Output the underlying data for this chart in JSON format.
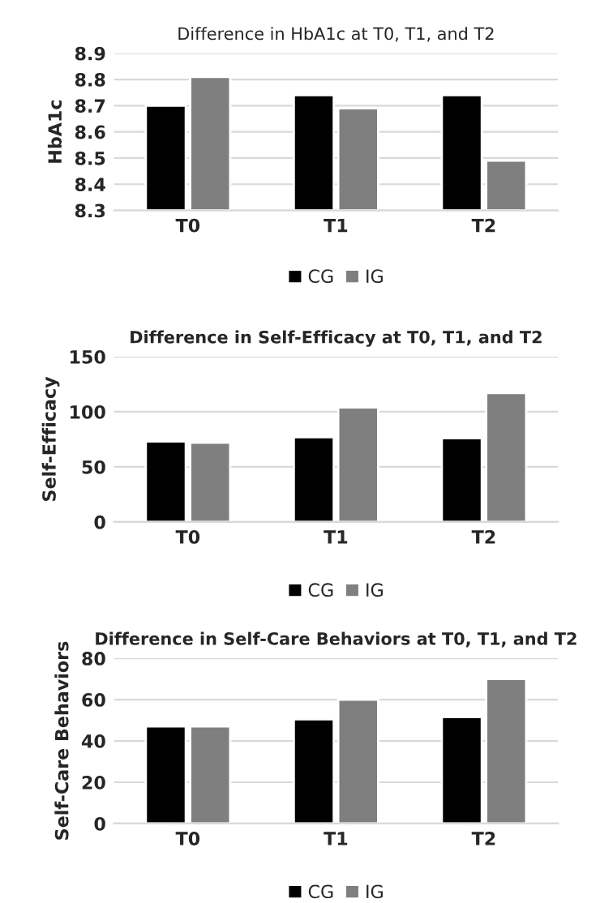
{
  "chart_data": [
    {
      "type": "bar",
      "title": "Difference in HbA1c at T0, T1, and T2",
      "ylabel": "HbA1c",
      "categories": [
        "T0",
        "T1",
        "T2"
      ],
      "series": [
        {
          "name": "CG",
          "color": "#000000",
          "values": [
            8.7,
            8.74,
            8.74
          ]
        },
        {
          "name": "IG",
          "color": "#7f7f7f",
          "values": [
            8.81,
            8.69,
            8.49
          ]
        }
      ],
      "ylim": [
        8.3,
        8.9
      ],
      "yticks": [
        {
          "value": 8.3,
          "label": "8.3"
        },
        {
          "value": 8.4,
          "label": "8.4"
        },
        {
          "value": 8.5,
          "label": "8.5"
        },
        {
          "value": 8.6,
          "label": "8.6"
        },
        {
          "value": 8.7,
          "label": "8.7"
        },
        {
          "value": 8.8,
          "label": "8.8"
        },
        {
          "value": 8.9,
          "label": "8.9"
        }
      ],
      "grid": "y",
      "legend": "bottom"
    },
    {
      "type": "bar",
      "title": "Difference in Self-Efficacy at T0, T1, and T2",
      "ylabel": "Self-Efficacy",
      "categories": [
        "T0",
        "T1",
        "T2"
      ],
      "series": [
        {
          "name": "CG",
          "color": "#000000",
          "values": [
            73,
            77,
            76
          ]
        },
        {
          "name": "IG",
          "color": "#7f7f7f",
          "values": [
            72,
            104,
            117
          ]
        }
      ],
      "ylim": [
        0,
        150
      ],
      "yticks": [
        0,
        50,
        100,
        150
      ],
      "grid": "y",
      "legend": "bottom"
    },
    {
      "type": "bar",
      "title": "Difference in Self-Care Behaviors at T0, T1, and T2",
      "ylabel": "Self-Care Behaviors",
      "categories": [
        "T0",
        "T1",
        "T2"
      ],
      "series": [
        {
          "name": "CG",
          "color": "#000000",
          "values": [
            47,
            50.5,
            51.5
          ]
        },
        {
          "name": "IG",
          "color": "#7f7f7f",
          "values": [
            47,
            60,
            70
          ]
        }
      ],
      "ylim": [
        0,
        80
      ],
      "yticks": [
        0,
        20,
        40,
        60,
        80
      ],
      "grid": "y",
      "legend": "bottom"
    }
  ]
}
